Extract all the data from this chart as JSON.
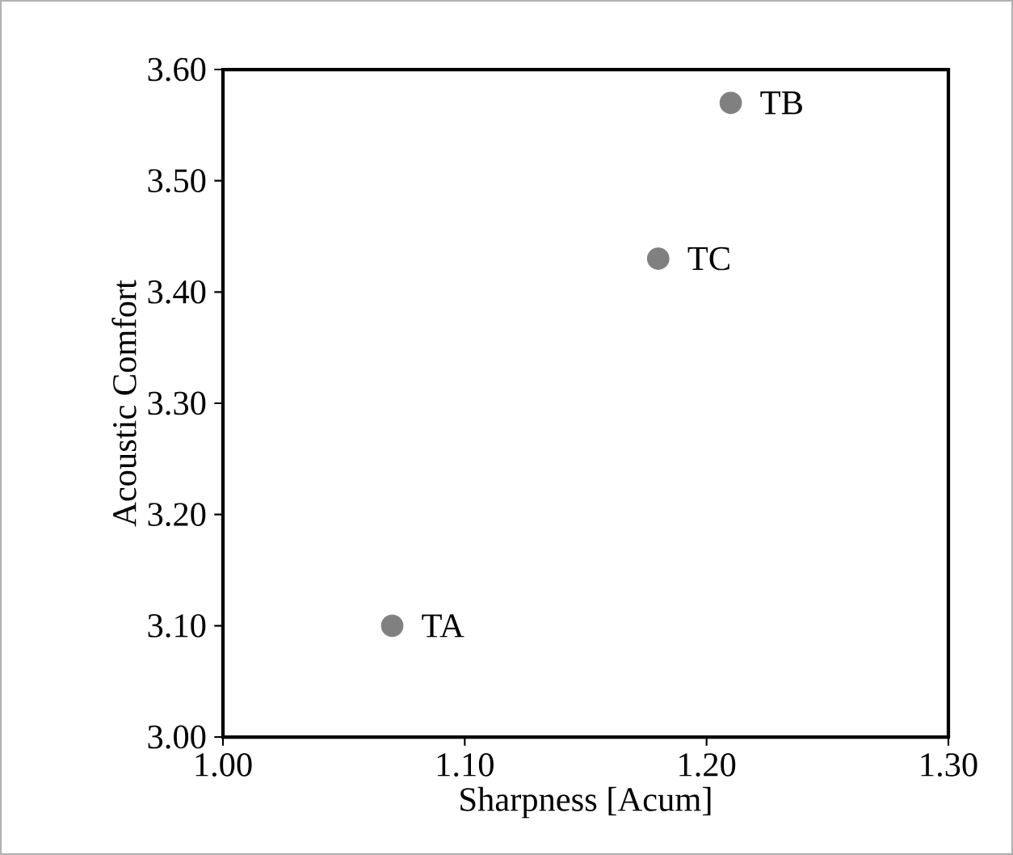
{
  "chart_data": {
    "type": "scatter",
    "xlabel": "Sharpness [Acum]",
    "ylabel": "Acoustic Comfort",
    "series": [
      {
        "color": "#808080",
        "x": [
          1.07,
          1.21,
          1.18
        ],
        "values": [
          3.1,
          3.57,
          3.43
        ]
      }
    ],
    "annotations": [
      {
        "text": "TA",
        "x": 1.07,
        "y": 3.1
      },
      {
        "text": "TB",
        "x": 1.21,
        "y": 3.57
      },
      {
        "text": "TC",
        "x": 1.18,
        "y": 3.43
      }
    ],
    "xlim": [
      1.0,
      1.3
    ],
    "xticks": [
      {
        "value": 1.0,
        "label": "1.00"
      },
      {
        "value": 1.1,
        "label": "1.10"
      },
      {
        "value": 1.2,
        "label": "1.20"
      },
      {
        "value": 1.3,
        "label": "1.30"
      }
    ],
    "ylim": [
      3.0,
      3.6
    ],
    "yticks": [
      {
        "value": 3.0,
        "label": "3.00"
      },
      {
        "value": 3.1,
        "label": "3.10"
      },
      {
        "value": 3.2,
        "label": "3.20"
      },
      {
        "value": 3.3,
        "label": "3.30"
      },
      {
        "value": 3.4,
        "label": "3.40"
      },
      {
        "value": 3.5,
        "label": "3.50"
      },
      {
        "value": 3.6,
        "label": "3.60"
      }
    ],
    "marker": "circle"
  }
}
